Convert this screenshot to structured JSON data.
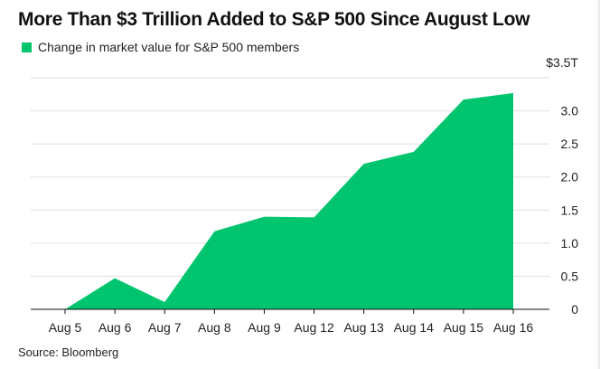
{
  "title": "More Than $3 Trillion Added to S&P 500 Since August Low",
  "source": "Source: Bloomberg",
  "colors": {
    "series": "#00c56e",
    "grid": "#dddddd",
    "baseline": "#111111",
    "text": "#111111"
  },
  "chart_data": {
    "type": "area",
    "title": "More Than $3 Trillion Added to S&P 500 Since August Low",
    "xlabel": "",
    "ylabel": "",
    "categories": [
      "Aug 5",
      "Aug 6",
      "Aug 7",
      "Aug 8",
      "Aug 9",
      "Aug 12",
      "Aug 13",
      "Aug 14",
      "Aug 15",
      "Aug 16"
    ],
    "series": [
      {
        "name": "Change in market value for S&P 500 members",
        "values": [
          0.0,
          0.47,
          0.11,
          1.18,
          1.4,
          1.39,
          2.2,
          2.38,
          3.17,
          3.27
        ]
      }
    ],
    "ylim": [
      0,
      3.5
    ],
    "yticks": [
      0,
      0.5,
      1.0,
      1.5,
      2.0,
      2.5,
      3.0,
      3.5
    ],
    "ytick_labels": [
      "0",
      "0.5",
      "1.0",
      "1.5",
      "2.0",
      "2.5",
      "3.0",
      "$3.5T"
    ],
    "grid": true,
    "legend": "top-left",
    "yaxis_side": "right"
  }
}
